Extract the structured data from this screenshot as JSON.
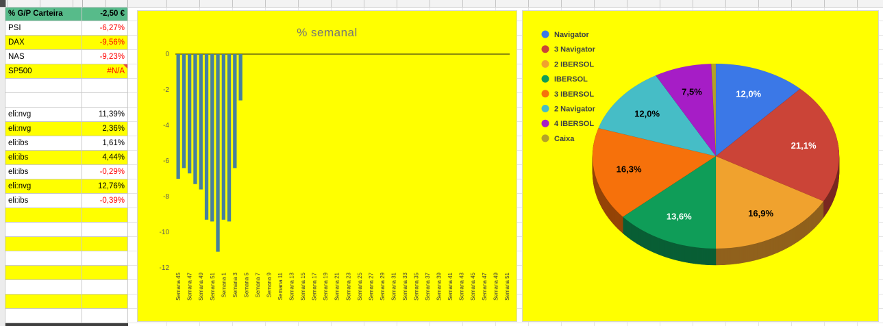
{
  "spreadsheet": {
    "table": {
      "rows": [
        {
          "label": "% G/P Carteira",
          "value": "-2,50 €",
          "bg": "green",
          "bold": true,
          "value_red": false,
          "note": false
        },
        {
          "label": "PSI",
          "value": "-6,27%",
          "bg": "white",
          "bold": false,
          "value_red": true,
          "note": false
        },
        {
          "label": "DAX",
          "value": "-9,56%",
          "bg": "yellow",
          "bold": false,
          "value_red": true,
          "note": false
        },
        {
          "label": "NAS",
          "value": "-9,23%",
          "bg": "white",
          "bold": false,
          "value_red": true,
          "note": false
        },
        {
          "label": "SP500",
          "value": "#N/A",
          "bg": "yellow",
          "bold": false,
          "value_red": true,
          "note": true
        },
        {
          "label": "",
          "value": "",
          "bg": "white",
          "bold": false,
          "value_red": false,
          "note": false
        },
        {
          "label": "",
          "value": "",
          "bg": "white",
          "bold": false,
          "value_red": false,
          "note": false
        },
        {
          "label": "eli:nvg",
          "value": "11,39%",
          "bg": "white",
          "bold": false,
          "value_red": false,
          "note": false
        },
        {
          "label": "eli:nvg",
          "value": "2,36%",
          "bg": "yellow",
          "bold": false,
          "value_red": false,
          "note": false
        },
        {
          "label": "eli:ibs",
          "value": "1,61%",
          "bg": "white",
          "bold": false,
          "value_red": false,
          "note": false
        },
        {
          "label": "eli:ibs",
          "value": "4,44%",
          "bg": "yellow",
          "bold": false,
          "value_red": false,
          "note": false
        },
        {
          "label": "eli:ibs",
          "value": "-0,29%",
          "bg": "white",
          "bold": false,
          "value_red": true,
          "note": false
        },
        {
          "label": "eli:nvg",
          "value": "12,76%",
          "bg": "yellow",
          "bold": false,
          "value_red": false,
          "note": false
        },
        {
          "label": "eli:ibs",
          "value": "-0,39%",
          "bg": "white",
          "bold": false,
          "value_red": true,
          "note": false
        },
        {
          "label": "",
          "value": "",
          "bg": "yellow",
          "bold": false,
          "value_red": false,
          "note": false
        },
        {
          "label": "",
          "value": "",
          "bg": "white",
          "bold": false,
          "value_red": false,
          "note": false
        },
        {
          "label": "",
          "value": "",
          "bg": "yellow",
          "bold": false,
          "value_red": false,
          "note": false
        },
        {
          "label": "",
          "value": "",
          "bg": "white",
          "bold": false,
          "value_red": false,
          "note": false
        },
        {
          "label": "",
          "value": "",
          "bg": "yellow",
          "bold": false,
          "value_red": false,
          "note": false
        },
        {
          "label": "",
          "value": "",
          "bg": "white",
          "bold": false,
          "value_red": false,
          "note": false
        },
        {
          "label": "",
          "value": "",
          "bg": "yellow",
          "bold": false,
          "value_red": false,
          "note": false
        },
        {
          "label": "",
          "value": "",
          "bg": "white",
          "bold": false,
          "value_red": false,
          "note": false
        },
        {
          "label": "",
          "value": "",
          "bg": "dark",
          "bold": false,
          "value_red": false,
          "note": false
        }
      ]
    },
    "colors": {
      "header_green": "#57BB8A",
      "highlight_yellow": "#FFFF00",
      "negative_red": "#FF0000",
      "chart_background": "#FFFF00"
    }
  },
  "chart_data": [
    {
      "type": "bar",
      "title": "% semanal",
      "xlabel": "",
      "ylabel": "",
      "ylim": [
        -12,
        0
      ],
      "yticks": [
        0,
        -2,
        -4,
        -6,
        -8,
        -10,
        -12
      ],
      "grid": false,
      "n_slots": 59,
      "values": [
        -7.0,
        -6.4,
        -6.7,
        -7.3,
        -7.6,
        -9.3,
        -9.4,
        -11.1,
        -9.3,
        -9.4,
        -6.4,
        -2.6
      ],
      "x_tick_labels": [
        "Semana 45",
        "Semana 47",
        "Semana 49",
        "Semana 51",
        "Semana 1",
        "Semana 3",
        "Semana 5",
        "Semana 7",
        "Semana 9",
        "Semana 11",
        "Semana 13",
        "Semana 15",
        "Semana 17",
        "Semana 19",
        "Semana 21",
        "Semana 23",
        "Semana 25",
        "Semana 27",
        "Semana 29",
        "Semana 31",
        "Semana 33",
        "Semana 35",
        "Semana 37",
        "Semana 39",
        "Semana 41",
        "Semana 43",
        "Semana 45",
        "Semana 47",
        "Semana 49",
        "Semana 51"
      ],
      "bar_color": "#47809C",
      "background": "#FFFF00"
    },
    {
      "type": "pie",
      "legend_position": "left",
      "background": "#FFFF00",
      "slices": [
        {
          "label": "Navigator",
          "value": 12.0,
          "display": "12,0%",
          "color": "#3B78E7",
          "label_color": "#FFFFFF"
        },
        {
          "label": "3 Navigator",
          "value": 21.1,
          "display": "21,1%",
          "color": "#CB4437",
          "label_color": "#FFFFFF"
        },
        {
          "label": "2 IBERSOL",
          "value": 16.9,
          "display": "16,9%",
          "color": "#F0A22E",
          "label_color": "#000000"
        },
        {
          "label": "IBERSOL",
          "value": 13.6,
          "display": "13,6%",
          "color": "#0F9D58",
          "label_color": "#FFFFFF"
        },
        {
          "label": "3 IBERSOL",
          "value": 16.3,
          "display": "16,3%",
          "color": "#F6710B",
          "label_color": "#000000"
        },
        {
          "label": "2 Navigator",
          "value": 12.0,
          "display": "12,0%",
          "color": "#46BDC6",
          "label_color": "#000000"
        },
        {
          "label": "4 IBERSOL",
          "value": 7.5,
          "display": "7,5%",
          "color": "#A61DC6",
          "label_color": "#000000"
        },
        {
          "label": "Caixa",
          "value": 0.6,
          "display": "",
          "color": "#B3A229",
          "label_color": "#000000"
        }
      ]
    }
  ]
}
